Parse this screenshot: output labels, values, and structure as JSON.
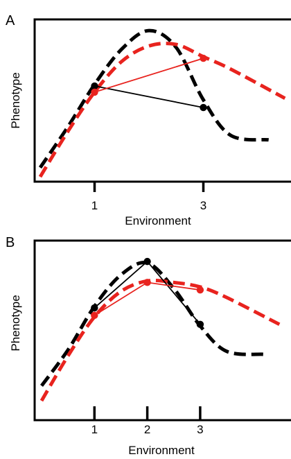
{
  "chart_data": [
    {
      "type": "line",
      "panel_label": "A",
      "xlabel": "Environment",
      "ylabel": "Phenotype",
      "x_ticks": [
        1,
        3
      ],
      "xlim": [
        0,
        4.5
      ],
      "ylim": [
        0,
        10
      ],
      "series": [
        {
          "color": "#000000",
          "style": "dashed",
          "smooth": true,
          "x": [
            0,
            0.5,
            1,
            1.5,
            2,
            2.5,
            3,
            3.5,
            4.2
          ],
          "y": [
            0.6,
            3.2,
            6.0,
            8.3,
            9.5,
            8.4,
            5.0,
            2.7,
            2.4
          ]
        },
        {
          "color": "#e8231e",
          "style": "dashed",
          "smooth": true,
          "x": [
            0,
            0.5,
            1,
            1.5,
            2,
            2.5,
            3,
            3.5,
            4.5
          ],
          "y": [
            0.0,
            2.9,
            5.5,
            7.5,
            8.5,
            8.6,
            7.8,
            7.0,
            5.1
          ]
        },
        {
          "color": "#000000",
          "style": "solid",
          "markers": true,
          "x": [
            1,
            3
          ],
          "y": [
            5.9,
            4.5
          ]
        },
        {
          "color": "#e8231e",
          "style": "solid",
          "markers": true,
          "x": [
            1,
            3
          ],
          "y": [
            5.5,
            7.7
          ]
        }
      ]
    },
    {
      "type": "line",
      "panel_label": "B",
      "xlabel": "Environment",
      "ylabel": "Phenotype",
      "x_ticks": [
        1,
        2,
        3
      ],
      "xlim": [
        0,
        4.5
      ],
      "ylim": [
        0,
        10
      ],
      "series": [
        {
          "color": "#000000",
          "style": "dashed",
          "smooth": true,
          "x": [
            0,
            0.5,
            1,
            1.5,
            2,
            2.5,
            3,
            3.5,
            4.2
          ],
          "y": [
            1.0,
            3.4,
            6.3,
            8.4,
            9.2,
            7.5,
            5.0,
            3.3,
            3.1
          ]
        },
        {
          "color": "#e8231e",
          "style": "dashed",
          "smooth": true,
          "x": [
            0,
            0.5,
            1,
            1.5,
            2,
            2.5,
            3,
            3.5,
            4.5
          ],
          "y": [
            0.0,
            3.0,
            5.6,
            7.3,
            8.0,
            7.9,
            7.6,
            6.9,
            5.1
          ]
        },
        {
          "color": "#000000",
          "style": "solid",
          "markers": true,
          "x": [
            1,
            2,
            3
          ],
          "y": [
            6.2,
            9.3,
            5.1
          ]
        },
        {
          "color": "#e8231e",
          "style": "solid",
          "markers": true,
          "x": [
            1,
            2,
            3
          ],
          "y": [
            5.7,
            7.9,
            7.4
          ]
        }
      ]
    }
  ]
}
